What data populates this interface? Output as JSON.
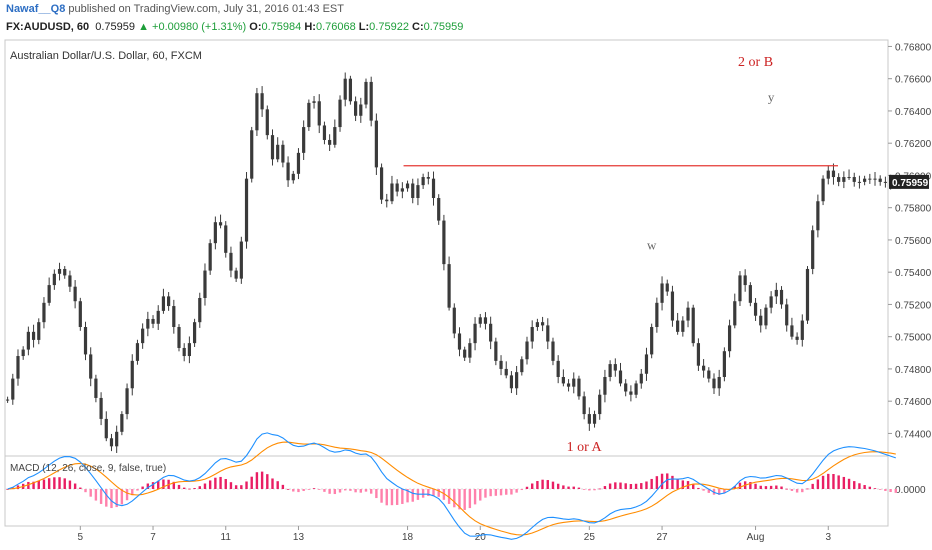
{
  "header": {
    "author": "Nawaf__Q8",
    "published": "published on TradingView.com, July 31, 2016 01:43 EST",
    "symbol": "FX:AUDUSD, 60",
    "last": "0.75959",
    "change": "▲ +0.00980 (+1.31%)",
    "o_label": "O:",
    "o_value": "0.75984",
    "h_label": "H:",
    "h_value": "0.76068",
    "l_label": "L:",
    "l_value": "0.75922",
    "c_label": "C:",
    "c_value": "0.75959"
  },
  "chart_data": {
    "type": "line",
    "title": "Australian Dollar/U.S. Dollar, 60, FXCM",
    "y_ticks": [
      "0.76800",
      "0.76600",
      "0.76400",
      "0.76200",
      "0.76000",
      "0.75800",
      "0.75600",
      "0.75400",
      "0.75200",
      "0.75000",
      "0.74800",
      "0.74600",
      "0.74400"
    ],
    "ylim": [
      0.7426,
      0.7684
    ],
    "x_ticks": [
      "5",
      "7",
      "11",
      "13",
      "18",
      "20",
      "25",
      "27",
      "Aug",
      "3"
    ],
    "x_tick_index": [
      14,
      28,
      42,
      56,
      77,
      91,
      112,
      126,
      144,
      158
    ],
    "n_bars": 170,
    "series": [
      {
        "values": [
          0.7461,
          0.7474,
          0.7488,
          0.7492,
          0.7503,
          0.7498,
          0.7509,
          0.7521,
          0.7532,
          0.7539,
          0.7542,
          0.7538,
          0.7531,
          0.7522,
          0.7506,
          0.7489,
          0.7474,
          0.7462,
          0.7449,
          0.7437,
          0.7432,
          0.7441,
          0.7452,
          0.7468,
          0.7485,
          0.7496,
          0.7505,
          0.7511,
          0.7508,
          0.7516,
          0.7525,
          0.7519,
          0.7506,
          0.7493,
          0.7488,
          0.7496,
          0.7509,
          0.7524,
          0.7541,
          0.7558,
          0.7571,
          0.7569,
          0.7552,
          0.7541,
          0.7536,
          0.7559,
          0.7598,
          0.7628,
          0.7651,
          0.7641,
          0.7625,
          0.761,
          0.7619,
          0.7608,
          0.7597,
          0.7601,
          0.7614,
          0.763,
          0.7645,
          0.7646,
          0.7631,
          0.7622,
          0.7619,
          0.763,
          0.7647,
          0.766,
          0.7646,
          0.7637,
          0.7644,
          0.7658,
          0.7634,
          0.7605,
          0.7585,
          0.7584,
          0.7595,
          0.759,
          0.7592,
          0.7595,
          0.7586,
          0.7594,
          0.7599,
          0.7598,
          0.7586,
          0.7572,
          0.7545,
          0.7518,
          0.7502,
          0.7492,
          0.7487,
          0.7496,
          0.7508,
          0.7512,
          0.7508,
          0.7497,
          0.7485,
          0.748,
          0.7476,
          0.7468,
          0.7478,
          0.7486,
          0.7497,
          0.7506,
          0.7509,
          0.7507,
          0.7497,
          0.7485,
          0.7475,
          0.7471,
          0.7469,
          0.7474,
          0.7463,
          0.7452,
          0.7446,
          0.7452,
          0.7464,
          0.7475,
          0.7483,
          0.7479,
          0.7471,
          0.7466,
          0.7464,
          0.7471,
          0.7477,
          0.7489,
          0.7506,
          0.7521,
          0.7533,
          0.7528,
          0.751,
          0.7503,
          0.751,
          0.7518,
          0.7496,
          0.7482,
          0.7479,
          0.7474,
          0.7468,
          0.7475,
          0.7491,
          0.7507,
          0.7522,
          0.7538,
          0.7532,
          0.7521,
          0.7513,
          0.7507,
          0.7518,
          0.7525,
          0.7529,
          0.752,
          0.7507,
          0.75,
          0.7498,
          0.751,
          0.7542,
          0.7566,
          0.7584,
          0.7598,
          0.7603,
          0.7599,
          0.7596,
          0.7599,
          0.7599,
          0.7596,
          0.7596,
          0.7598,
          0.7598,
          0.7598,
          0.7596,
          0.7596,
          0.7596,
          0.7596
        ]
      }
    ],
    "last_value_label": "0.75959",
    "resistance_level": 0.7606,
    "annotations": [
      {
        "text": "2 or B",
        "x": 144,
        "y": 0.7668,
        "color": "#cc2222"
      },
      {
        "text": "y",
        "x": 147,
        "y": 0.7646,
        "color": "#666666"
      },
      {
        "text": "w",
        "x": 124,
        "y": 0.7554,
        "color": "#666666"
      },
      {
        "text": "1 or A",
        "x": 111,
        "y": 0.7429,
        "color": "#cc2222"
      }
    ],
    "macd": {
      "label": "MACD (12, 26, close, 9, false, true)",
      "zero_label": "0.0000"
    },
    "colors": {
      "candle": "#3a3a3a",
      "resistance": "#e53935",
      "macd": "#1e90ff",
      "signal": "#ff8c00",
      "hist_pos": "#e91e63",
      "hist_neg": "#ff80ab"
    }
  }
}
